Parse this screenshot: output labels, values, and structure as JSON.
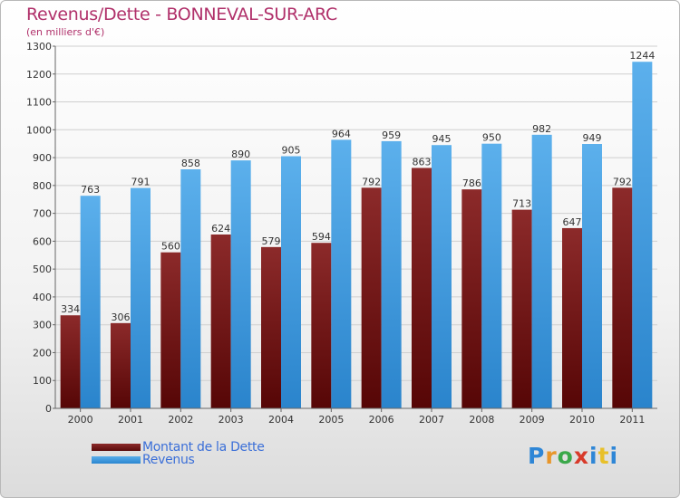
{
  "chart_data": {
    "type": "bar",
    "title": "Revenus/Dette - BONNEVAL-SUR-ARC",
    "subtitle": "(en milliers d'€)",
    "categories": [
      "2000",
      "2001",
      "2002",
      "2003",
      "2004",
      "2005",
      "2006",
      "2007",
      "2008",
      "2009",
      "2010",
      "2011"
    ],
    "series": [
      {
        "name": "Montant de la Dette",
        "values": [
          334,
          306,
          560,
          624,
          579,
          594,
          792,
          863,
          786,
          713,
          647,
          792
        ]
      },
      {
        "name": "Revenus",
        "values": [
          763,
          791,
          858,
          890,
          905,
          964,
          959,
          945,
          950,
          982,
          949,
          1244
        ]
      }
    ],
    "ylim": [
      0,
      1300
    ],
    "yticks": [
      0,
      100,
      200,
      300,
      400,
      500,
      600,
      700,
      800,
      900,
      1000,
      1100,
      1200,
      1300
    ],
    "grid": true,
    "legend_position": "bottom-left",
    "colors": {
      "dette_top": "#8c2a2a",
      "dette_bottom": "#560606",
      "revenus_top": "#5cb0ec",
      "revenus_bottom": "#2a84cc",
      "title": "#b0306a",
      "legend_text": "#3b6fd8"
    }
  },
  "logo": {
    "letters": [
      "P",
      "r",
      "o",
      "x",
      "i",
      "t",
      "i"
    ],
    "letter_colors": [
      "#2e86d6",
      "#e8962a",
      "#3aa84a",
      "#d83a2a",
      "#2e86d6",
      "#e8c02a",
      "#2e86d6"
    ]
  }
}
